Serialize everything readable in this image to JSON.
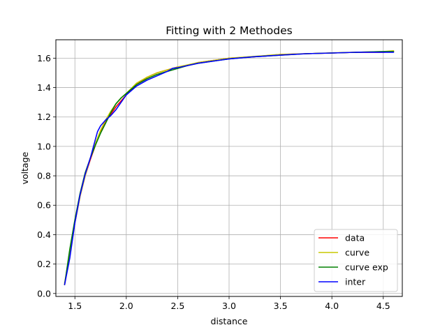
{
  "chart_data": {
    "type": "line",
    "title": "Fitting with 2 Methodes",
    "xlabel": "distance",
    "ylabel": "voltage",
    "xlim": [
      1.315,
      4.685
    ],
    "ylim": [
      -0.02,
      1.725
    ],
    "xticks": [
      1.5,
      2.0,
      2.5,
      3.0,
      3.5,
      4.0,
      4.5
    ],
    "xtick_labels": [
      "1.5",
      "2.0",
      "2.5",
      "3.0",
      "3.5",
      "4.0",
      "4.5"
    ],
    "yticks": [
      0.0,
      0.2,
      0.4,
      0.6,
      0.8,
      1.0,
      1.2,
      1.4,
      1.6
    ],
    "ytick_labels": [
      "0.0",
      "0.2",
      "0.4",
      "0.6",
      "0.8",
      "1.0",
      "1.2",
      "1.4",
      "1.6"
    ],
    "grid": true,
    "legend_position": "lower-right",
    "series": [
      {
        "name": "data",
        "color": "#ff0000",
        "x": [
          1.4,
          1.45,
          1.5,
          1.55,
          1.6,
          1.65,
          1.7,
          1.75,
          1.8,
          1.85,
          1.9,
          1.95,
          2.0,
          2.1,
          2.2,
          2.3,
          2.4,
          2.5,
          2.6,
          2.7,
          2.8,
          2.9,
          3.0,
          3.25,
          3.5,
          3.75,
          4.0,
          4.25,
          4.5,
          4.6
        ],
        "y": [
          0.06,
          0.26,
          0.48,
          0.66,
          0.8,
          0.91,
          1.01,
          1.1,
          1.17,
          1.22,
          1.27,
          1.31,
          1.35,
          1.42,
          1.47,
          1.5,
          1.52,
          1.54,
          1.55,
          1.57,
          1.58,
          1.59,
          1.6,
          1.61,
          1.625,
          1.63,
          1.635,
          1.64,
          1.64,
          1.645
        ]
      },
      {
        "name": "curve",
        "color": "#c8c800",
        "x": [
          1.4,
          1.45,
          1.5,
          1.55,
          1.6,
          1.65,
          1.7,
          1.75,
          1.8,
          1.85,
          1.9,
          1.95,
          2.0,
          2.1,
          2.2,
          2.3,
          2.4,
          2.5,
          2.6,
          2.7,
          2.8,
          2.9,
          3.0,
          3.25,
          3.5,
          3.75,
          4.0,
          4.25,
          4.5,
          4.6
        ],
        "y": [
          0.07,
          0.27,
          0.48,
          0.66,
          0.8,
          0.92,
          1.02,
          1.11,
          1.18,
          1.24,
          1.29,
          1.33,
          1.36,
          1.43,
          1.47,
          1.5,
          1.52,
          1.54,
          1.555,
          1.57,
          1.58,
          1.59,
          1.6,
          1.612,
          1.625,
          1.63,
          1.636,
          1.64,
          1.645,
          1.65
        ]
      },
      {
        "name": "curve exp",
        "color": "#008000",
        "x": [
          1.4,
          1.45,
          1.5,
          1.55,
          1.6,
          1.65,
          1.7,
          1.75,
          1.8,
          1.85,
          1.9,
          1.95,
          2.0,
          2.1,
          2.2,
          2.3,
          2.4,
          2.5,
          2.6,
          2.7,
          2.8,
          2.9,
          3.0,
          3.25,
          3.5,
          3.75,
          4.0,
          4.25,
          4.5,
          4.6
        ],
        "y": [
          0.06,
          0.3,
          0.5,
          0.68,
          0.82,
          0.92,
          1.01,
          1.09,
          1.16,
          1.23,
          1.29,
          1.33,
          1.36,
          1.42,
          1.46,
          1.49,
          1.51,
          1.53,
          1.55,
          1.565,
          1.575,
          1.585,
          1.595,
          1.61,
          1.62,
          1.63,
          1.635,
          1.64,
          1.645,
          1.645
        ]
      },
      {
        "name": "inter",
        "color": "#0000ff",
        "x": [
          1.4,
          1.45,
          1.5,
          1.55,
          1.6,
          1.65,
          1.7,
          1.72,
          1.75,
          1.8,
          1.85,
          1.9,
          1.95,
          2.0,
          2.1,
          2.2,
          2.3,
          2.4,
          2.45,
          2.5,
          2.6,
          2.7,
          2.8,
          2.9,
          3.0,
          3.25,
          3.5,
          3.75,
          4.0,
          4.25,
          4.5,
          4.6
        ],
        "y": [
          0.06,
          0.24,
          0.48,
          0.67,
          0.81,
          0.92,
          1.05,
          1.1,
          1.14,
          1.18,
          1.21,
          1.25,
          1.3,
          1.35,
          1.41,
          1.45,
          1.48,
          1.51,
          1.53,
          1.535,
          1.55,
          1.565,
          1.575,
          1.585,
          1.595,
          1.61,
          1.62,
          1.63,
          1.635,
          1.64,
          1.64,
          1.64
        ]
      }
    ]
  }
}
